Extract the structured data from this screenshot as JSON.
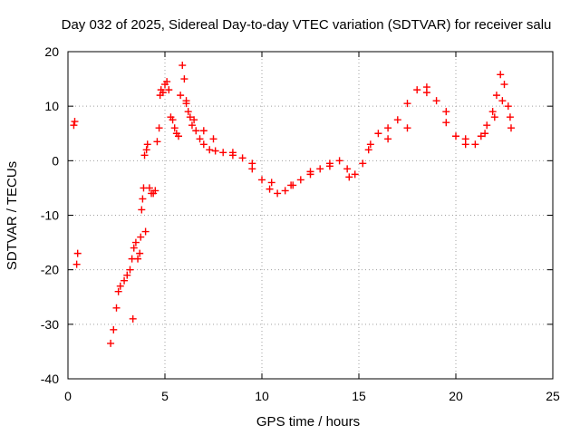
{
  "chart_data": {
    "type": "scatter",
    "title": "Day 032 of 2025, Sidereal Day-to-day VTEC variation (SDTVAR) for receiver salu",
    "xlabel": "GPS time / hours",
    "ylabel": "SDTVAR / TECUs",
    "xlim": [
      0,
      25
    ],
    "ylim": [
      -40,
      20
    ],
    "xticks": [
      0,
      5,
      10,
      15,
      20,
      25
    ],
    "yticks": [
      -40,
      -30,
      -20,
      -10,
      0,
      10,
      20
    ],
    "grid": true,
    "legend": "none",
    "marker": "plus",
    "series": [
      {
        "name": "SDTVAR",
        "color": "#ff0000",
        "x": [
          0.3,
          0.35,
          0.45,
          0.5,
          2.2,
          2.35,
          2.5,
          2.6,
          2.7,
          2.9,
          3.05,
          3.2,
          3.3,
          3.35,
          3.4,
          3.5,
          3.6,
          3.7,
          3.75,
          3.8,
          3.85,
          3.9,
          3.95,
          4.0,
          4.05,
          4.1,
          4.2,
          4.3,
          4.4,
          4.5,
          4.6,
          4.7,
          4.75,
          4.8,
          4.9,
          5.0,
          5.1,
          5.2,
          5.3,
          5.4,
          5.5,
          5.6,
          5.7,
          5.8,
          5.9,
          6.0,
          6.1,
          6.2,
          6.3,
          6.4,
          6.6,
          6.8,
          7.0,
          7.3,
          7.6,
          8.0,
          8.5,
          9.0,
          9.5,
          10.0,
          10.4,
          10.8,
          11.2,
          11.6,
          12.0,
          12.5,
          13.0,
          13.5,
          14.0,
          14.4,
          14.8,
          15.2,
          15.6,
          16.0,
          16.5,
          17.0,
          17.5,
          18.0,
          18.5,
          19.0,
          19.5,
          20.0,
          20.5,
          21.0,
          21.3,
          21.6,
          21.9,
          22.1,
          22.3,
          22.5,
          22.7,
          22.85,
          6.1,
          6.5,
          7.0,
          7.5,
          8.5,
          9.5,
          10.5,
          11.5,
          12.5,
          13.5,
          14.5,
          15.5,
          16.5,
          17.5,
          18.5,
          19.5,
          20.5,
          21.5,
          22.0,
          22.4,
          22.8
        ],
        "y": [
          6.5,
          7.2,
          -19,
          -17,
          -33.5,
          -31,
          -27,
          -24,
          -23,
          -22,
          -21,
          -20,
          -18,
          -29,
          -16,
          -15,
          -18,
          -17,
          -14,
          -9,
          -7,
          -5,
          1,
          -13,
          2,
          3,
          -5,
          -6,
          -6,
          -5.5,
          3.5,
          6,
          12,
          13,
          12.5,
          14,
          14.5,
          13,
          8,
          7.5,
          6,
          5,
          4.5,
          12,
          17.5,
          15,
          11,
          9,
          8,
          6.5,
          5.5,
          4,
          3,
          2,
          1.8,
          1.5,
          1,
          0.5,
          -1.5,
          -3.5,
          -5.2,
          -6,
          -5.5,
          -4.5,
          -3.5,
          -2.5,
          -1.5,
          -0.5,
          0,
          -1.5,
          -2.5,
          -0.5,
          3,
          5,
          6,
          7.5,
          10.5,
          13,
          13.5,
          11,
          7,
          4.5,
          3,
          3,
          4.5,
          6.5,
          9,
          12,
          15.8,
          14,
          10,
          6,
          10.5,
          7.5,
          5.5,
          4,
          1.5,
          -0.5,
          -4,
          -4.5,
          -2,
          -1,
          -3,
          2,
          4,
          6,
          12.5,
          9,
          4,
          5,
          8,
          11,
          8
        ]
      }
    ]
  }
}
